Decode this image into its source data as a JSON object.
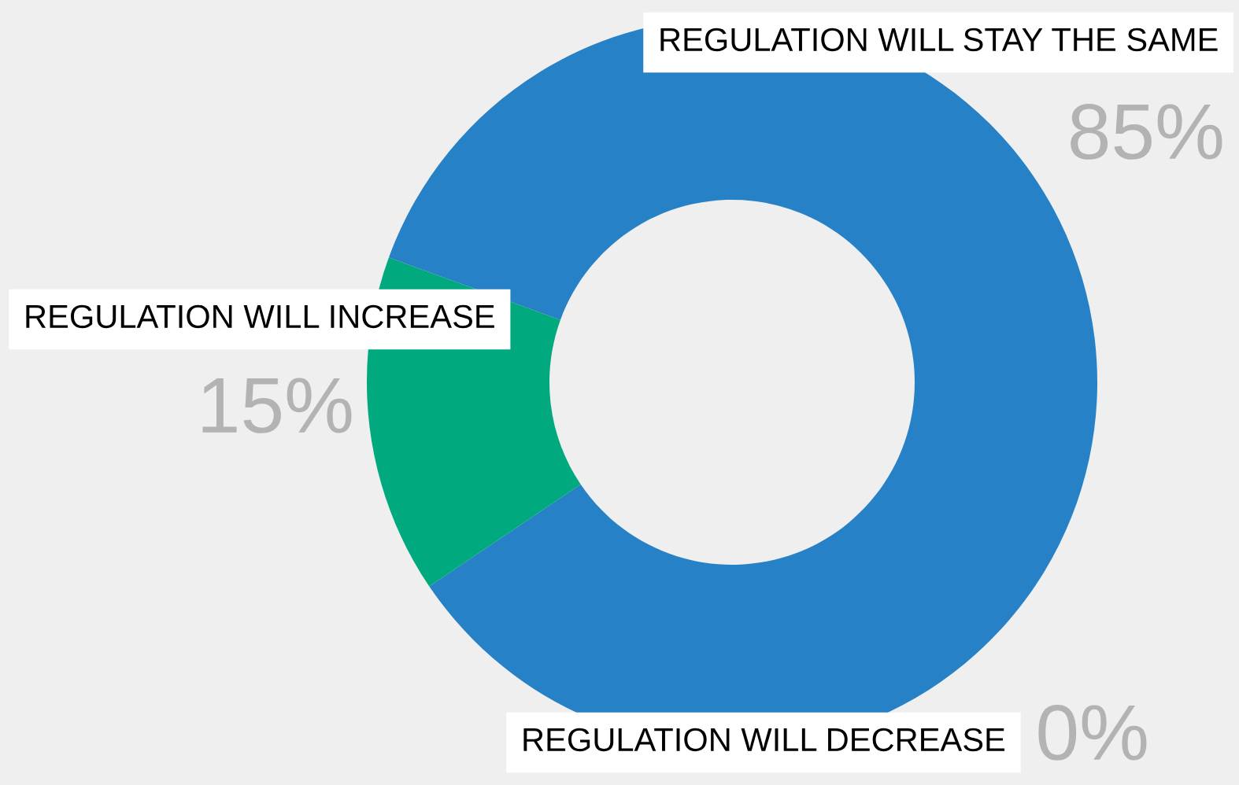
{
  "chart_data": {
    "type": "donut",
    "categories": [
      "REGULATION WILL STAY THE SAME",
      "REGULATION WILL INCREASE",
      "REGULATION WILL DECREASE"
    ],
    "values": [
      85,
      15,
      0
    ],
    "value_labels": [
      "85%",
      "15%",
      "0%"
    ],
    "colors": [
      "#2781c6",
      "#00a97e",
      "#2781c6"
    ],
    "legend": false
  }
}
